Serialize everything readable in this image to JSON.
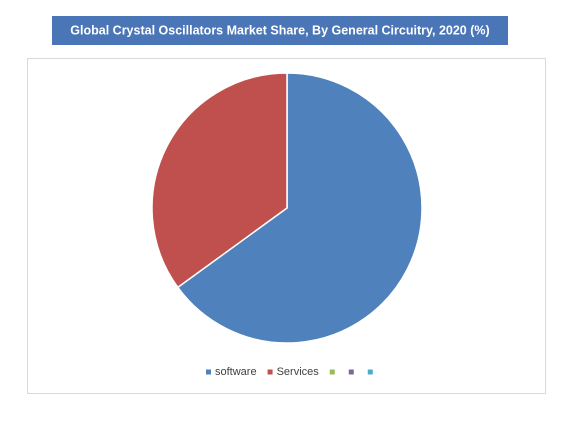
{
  "chart_data": {
    "type": "pie",
    "title": "Global Crystal Oscillators Market Share, By General Circuitry, 2020 (%)",
    "categories": [
      "software",
      "Services",
      null,
      null,
      null
    ],
    "values": [
      65,
      35,
      0,
      0,
      0
    ],
    "colors": [
      "#4f81bd",
      "#c0504d",
      "#9bbb59",
      "#8064a2",
      "#4bacc6"
    ],
    "legend": "bottom"
  }
}
